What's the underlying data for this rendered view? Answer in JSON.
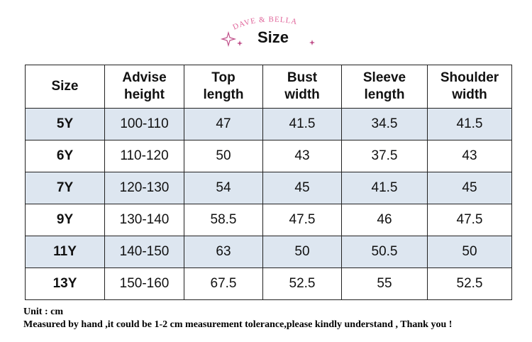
{
  "header": {
    "brand": "DAVE & BELLA",
    "title": "Size"
  },
  "table": {
    "columns": [
      "Size",
      "Advise height",
      "Top length",
      "Bust width",
      "Sleeve length",
      "Shoulder width"
    ],
    "rows": [
      [
        "5Y",
        "100-110",
        "47",
        "41.5",
        "34.5",
        "41.5"
      ],
      [
        "6Y",
        "110-120",
        "50",
        "43",
        "37.5",
        "43"
      ],
      [
        "7Y",
        "120-130",
        "54",
        "45",
        "41.5",
        "45"
      ],
      [
        "9Y",
        "130-140",
        "58.5",
        "47.5",
        "46",
        "47.5"
      ],
      [
        "11Y",
        "140-150",
        "63",
        "50",
        "50.5",
        "50"
      ],
      [
        "13Y",
        "150-160",
        "67.5",
        "52.5",
        "55",
        "52.5"
      ]
    ]
  },
  "notes": [
    "Unit : cm",
    "Measured by hand ,it could be 1-2 cm measurement tolerance,please kindly understand , Thank you !"
  ]
}
